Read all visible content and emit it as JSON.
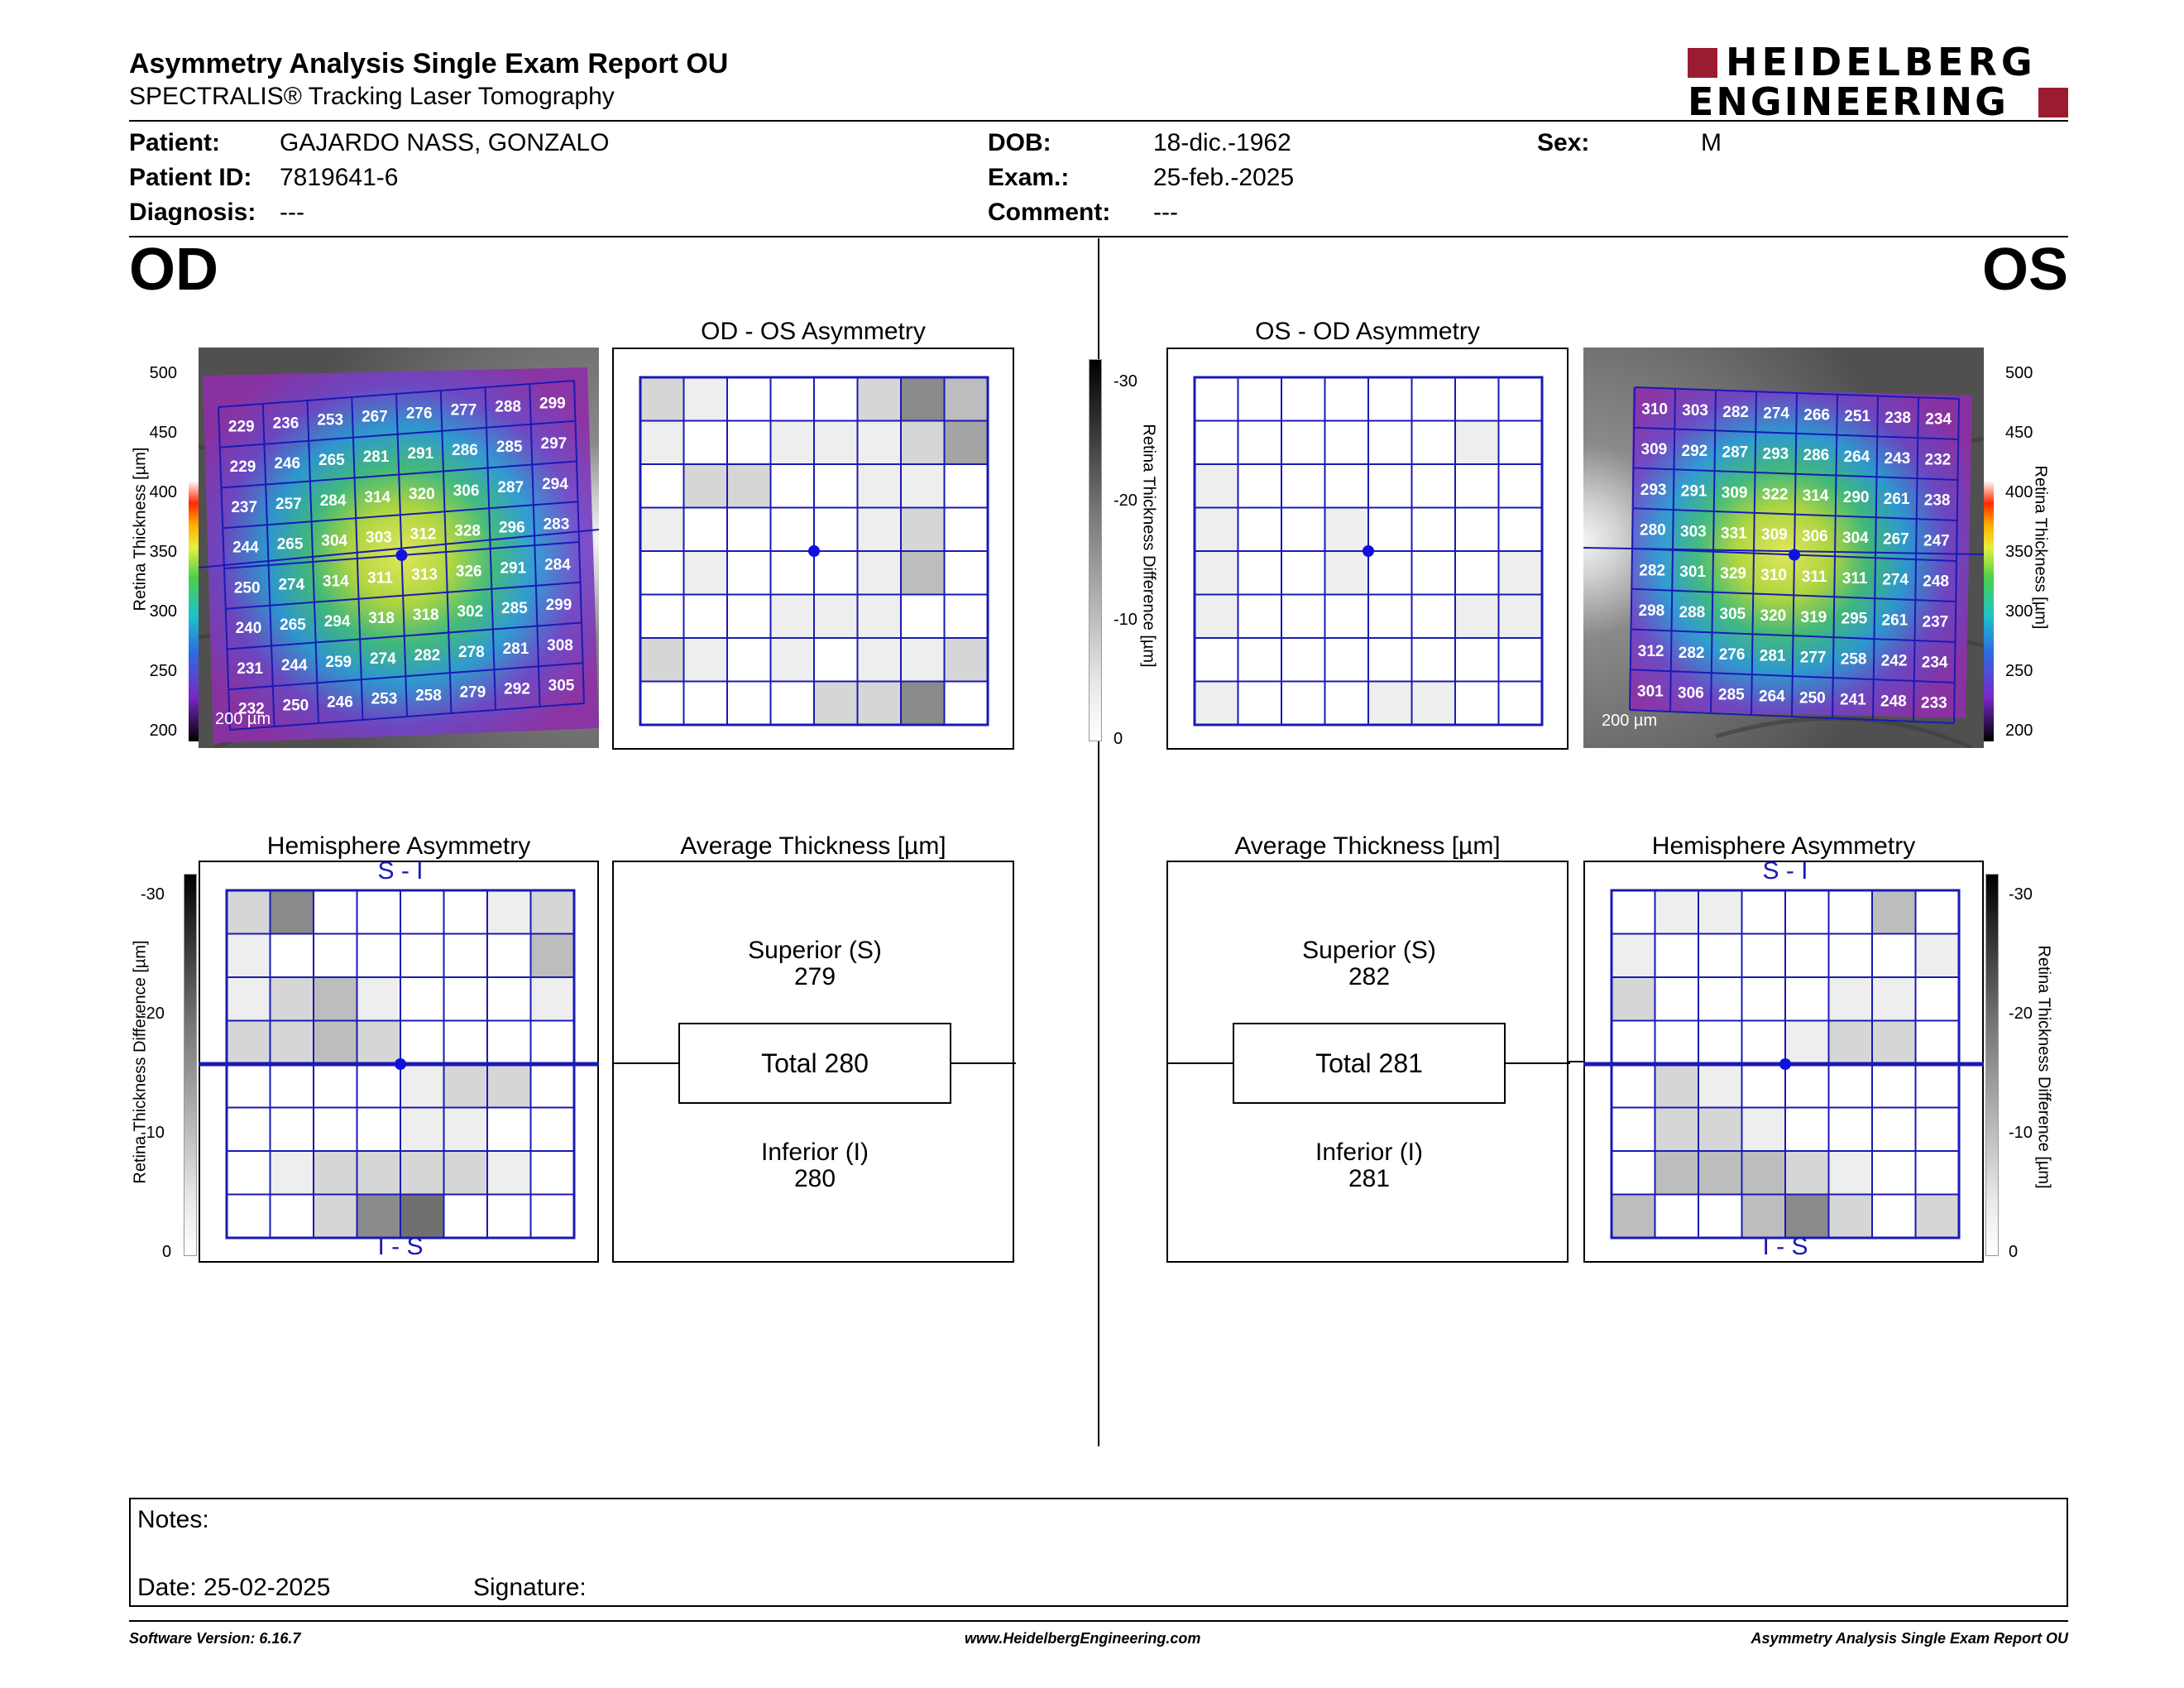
{
  "header": {
    "title": "Asymmetry Analysis Single Exam Report OU",
    "subtitle": "SPECTRALIS® Tracking Laser Tomography",
    "logo_line1": "HEIDELBERG",
    "logo_line2": "ENGINEERING",
    "brand_color": "#9b1c31"
  },
  "patient": {
    "patient_label": "Patient:",
    "patient_value": "GAJARDO NASS, GONZALO",
    "id_label": "Patient ID:",
    "id_value": "7819641-6",
    "diagnosis_label": "Diagnosis:",
    "diagnosis_value": "---",
    "dob_label": "DOB:",
    "dob_value": "18-dic.-1962",
    "exam_label": "Exam.:",
    "exam_value": "25-feb.-2025",
    "comment_label": "Comment:",
    "comment_value": "---",
    "sex_label": "Sex:",
    "sex_value": "M"
  },
  "od": {
    "eye": "OD",
    "asym_title": "OD - OS Asymmetry",
    "hemi_title": "Hemisphere Asymmetry",
    "avg_title": "Average Thickness [µm]",
    "superior_label": "Superior (S)",
    "superior_value": "279",
    "total_label": "Total 280",
    "inferior_label": "Inferior (I)",
    "inferior_value": "280",
    "scale_bar": "200 µm",
    "hemi_top": "S - I",
    "hemi_bottom": "I - S",
    "grid": [
      [
        229,
        236,
        253,
        267,
        276,
        277,
        288,
        299
      ],
      [
        229,
        246,
        265,
        281,
        291,
        286,
        285,
        297
      ],
      [
        237,
        257,
        284,
        314,
        320,
        306,
        287,
        294
      ],
      [
        244,
        265,
        304,
        303,
        312,
        328,
        296,
        283
      ],
      [
        250,
        274,
        314,
        311,
        313,
        326,
        291,
        284
      ],
      [
        240,
        265,
        294,
        318,
        318,
        302,
        285,
        299
      ],
      [
        231,
        244,
        259,
        274,
        282,
        278,
        281,
        308
      ],
      [
        232,
        250,
        246,
        253,
        258,
        279,
        292,
        305
      ]
    ],
    "asym_shades": [
      [
        2,
        1,
        0,
        0,
        0,
        2,
        5,
        3
      ],
      [
        1,
        0,
        0,
        1,
        1,
        1,
        2,
        4
      ],
      [
        0,
        2,
        2,
        0,
        0,
        1,
        1,
        0
      ],
      [
        1,
        0,
        0,
        0,
        0,
        1,
        2,
        0
      ],
      [
        0,
        1,
        0,
        0,
        0,
        1,
        3,
        0
      ],
      [
        0,
        0,
        0,
        1,
        1,
        1,
        0,
        0
      ],
      [
        2,
        1,
        0,
        1,
        0,
        1,
        1,
        2
      ],
      [
        0,
        0,
        0,
        0,
        2,
        2,
        5,
        0
      ]
    ],
    "hemi_shades": [
      [
        2,
        5,
        0,
        0,
        0,
        0,
        1,
        2
      ],
      [
        1,
        0,
        0,
        0,
        0,
        0,
        0,
        3
      ],
      [
        1,
        2,
        3,
        1,
        0,
        0,
        0,
        1
      ],
      [
        2,
        2,
        3,
        2,
        0,
        0,
        0,
        0
      ],
      [
        0,
        0,
        0,
        0,
        1,
        2,
        2,
        0
      ],
      [
        0,
        0,
        0,
        0,
        1,
        1,
        0,
        0
      ],
      [
        0,
        1,
        2,
        2,
        2,
        2,
        1,
        0
      ],
      [
        0,
        0,
        2,
        5,
        6,
        0,
        0,
        0
      ]
    ]
  },
  "os": {
    "eye": "OS",
    "asym_title": "OS - OD Asymmetry",
    "hemi_title": "Hemisphere Asymmetry",
    "avg_title": "Average Thickness [µm]",
    "superior_label": "Superior (S)",
    "superior_value": "282",
    "total_label": "Total 281",
    "inferior_label": "Inferior (I)",
    "inferior_value": "281",
    "scale_bar": "200 µm",
    "hemi_top": "S - I",
    "hemi_bottom": "I - S",
    "grid": [
      [
        310,
        303,
        282,
        274,
        266,
        251,
        238,
        234
      ],
      [
        309,
        292,
        287,
        293,
        286,
        264,
        243,
        232
      ],
      [
        293,
        291,
        309,
        322,
        314,
        290,
        261,
        238
      ],
      [
        280,
        303,
        331,
        309,
        306,
        304,
        267,
        247
      ],
      [
        282,
        301,
        329,
        310,
        311,
        311,
        274,
        248
      ],
      [
        298,
        288,
        305,
        320,
        319,
        295,
        261,
        237
      ],
      [
        312,
        282,
        276,
        281,
        277,
        258,
        242,
        234
      ],
      [
        301,
        306,
        285,
        264,
        250,
        241,
        248,
        233
      ]
    ],
    "asym_shades": [
      [
        0,
        0,
        0,
        0,
        0,
        0,
        0,
        0
      ],
      [
        0,
        0,
        0,
        0,
        0,
        0,
        1,
        0
      ],
      [
        1,
        0,
        0,
        0,
        0,
        0,
        0,
        0
      ],
      [
        1,
        0,
        0,
        1,
        0,
        0,
        0,
        0
      ],
      [
        1,
        0,
        0,
        1,
        0,
        0,
        0,
        1
      ],
      [
        1,
        0,
        0,
        0,
        0,
        0,
        1,
        1
      ],
      [
        0,
        0,
        0,
        0,
        0,
        0,
        0,
        0
      ],
      [
        1,
        0,
        0,
        0,
        1,
        1,
        0,
        0
      ]
    ],
    "hemi_shades": [
      [
        0,
        1,
        1,
        0,
        0,
        0,
        3,
        0
      ],
      [
        1,
        0,
        0,
        0,
        0,
        0,
        0,
        1
      ],
      [
        2,
        0,
        0,
        0,
        0,
        1,
        1,
        0
      ],
      [
        0,
        0,
        0,
        0,
        1,
        2,
        2,
        0
      ],
      [
        0,
        2,
        1,
        0,
        0,
        0,
        0,
        0
      ],
      [
        0,
        2,
        2,
        1,
        0,
        0,
        0,
        0
      ],
      [
        0,
        3,
        3,
        3,
        2,
        1,
        0,
        0
      ],
      [
        3,
        0,
        0,
        3,
        5,
        2,
        0,
        2
      ]
    ]
  },
  "thickness_scale": {
    "label": "Retina Thickness [µm]",
    "ticks": [
      "500",
      "450",
      "400",
      "350",
      "300",
      "250",
      "200"
    ]
  },
  "diff_scale": {
    "label": "Retina Thickness Difference [µm]",
    "ticks": [
      "-30",
      "-20",
      "-10",
      "0"
    ]
  },
  "notes": {
    "notes_label": "Notes:",
    "date_label": "Date: 25-02-2025",
    "signature_label": "Signature:"
  },
  "footer": {
    "version": "Software Version: 6.16.7",
    "website": "www.HeidelbergEngineering.com",
    "report_name": "Asymmetry Analysis Single Exam Report OU"
  },
  "colors": {
    "grid_blue": "#1a1ab4",
    "fovea_blue": "#1010e0"
  }
}
